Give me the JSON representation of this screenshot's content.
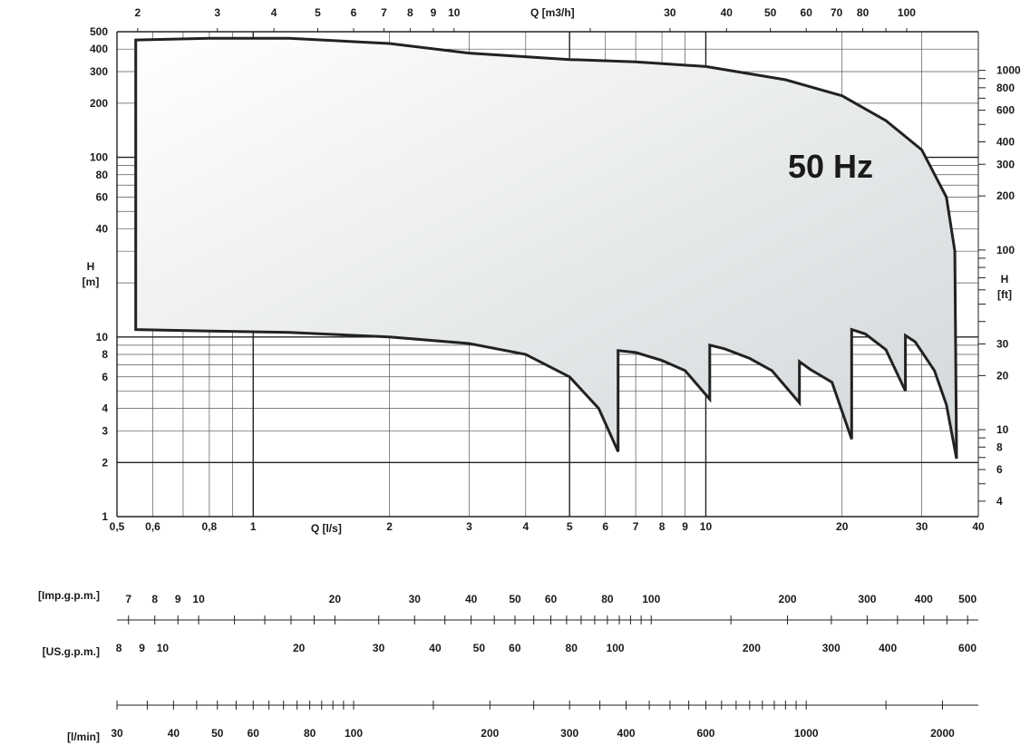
{
  "chart_data": {
    "type": "area",
    "title": "50 Hz",
    "x_axis": {
      "label": "Q  [l/s]",
      "scale": "log",
      "range": [
        0.5,
        40
      ],
      "ticks": [
        "0,5",
        "0,6",
        "0,8",
        "1",
        "2",
        "3",
        "4",
        "5",
        "6",
        "7",
        "8",
        "9",
        "10",
        "20",
        "30",
        "40"
      ]
    },
    "y_axis": {
      "label": "H\n[m]",
      "scale": "log",
      "range": [
        1,
        500
      ],
      "ticks": [
        "1",
        "2",
        "3",
        "4",
        "6",
        "8",
        "10",
        "40",
        "60",
        "80",
        "100",
        "200",
        "300",
        "400",
        "500"
      ]
    },
    "top_axis": {
      "label": "Q  [m3/h]",
      "ticks": [
        "2",
        "3",
        "4",
        "5",
        "6",
        "7",
        "8",
        "9",
        "10",
        "30",
        "40",
        "50",
        "60",
        "70",
        "80",
        "100"
      ]
    },
    "right_axis": {
      "label": "H\n[ft]",
      "ticks": [
        "4",
        "6",
        "8",
        "10",
        "20",
        "30",
        "100",
        "200",
        "300",
        "400",
        "600",
        "800",
        "1000"
      ]
    },
    "flow_scales": [
      {
        "label": "[Imp.g.p.m.]",
        "ticks": [
          "7",
          "8",
          "9",
          "10",
          "20",
          "30",
          "40",
          "50",
          "60",
          "80",
          "100",
          "200",
          "300",
          "400",
          "500"
        ]
      },
      {
        "label": "[US.g.p.m.]",
        "ticks": [
          "8",
          "9",
          "10",
          "20",
          "30",
          "40",
          "50",
          "60",
          "80",
          "100",
          "200",
          "300",
          "400",
          "600"
        ]
      },
      {
        "label": "[l/min]",
        "ticks": [
          "30",
          "40",
          "50",
          "60",
          "80",
          "100",
          "200",
          "300",
          "400",
          "600",
          "1000",
          "2000"
        ]
      }
    ],
    "series": [
      {
        "name": "50 Hz",
        "upper": [
          [
            0.55,
            450
          ],
          [
            0.8,
            460
          ],
          [
            1.2,
            460
          ],
          [
            2.0,
            430
          ],
          [
            3.0,
            380
          ],
          [
            5.0,
            350
          ],
          [
            7.0,
            340
          ],
          [
            10,
            320
          ],
          [
            15,
            270
          ],
          [
            20,
            220
          ],
          [
            25,
            160
          ],
          [
            30,
            110
          ],
          [
            34,
            60
          ],
          [
            35.5,
            30
          ]
        ],
        "lower": [
          [
            0.55,
            11
          ],
          [
            0.8,
            10.8
          ],
          [
            1.2,
            10.6
          ],
          [
            2.0,
            10.0
          ],
          [
            3.0,
            9.2
          ],
          [
            4.0,
            8.0
          ],
          [
            5.0,
            6.0
          ],
          [
            5.8,
            4.0
          ],
          [
            6.4,
            2.3
          ],
          [
            6.4,
            8.4
          ],
          [
            7.0,
            8.2
          ],
          [
            8.0,
            7.4
          ],
          [
            9.0,
            6.5
          ],
          [
            10.2,
            4.5
          ],
          [
            10.2,
            9.0
          ],
          [
            11.0,
            8.6
          ],
          [
            12.5,
            7.6
          ],
          [
            14.0,
            6.5
          ],
          [
            16.1,
            4.3
          ],
          [
            16.1,
            7.3
          ],
          [
            17.0,
            6.6
          ],
          [
            19.0,
            5.6
          ],
          [
            21.0,
            2.7
          ],
          [
            21.0,
            11.0
          ],
          [
            22.5,
            10.4
          ],
          [
            25.0,
            8.5
          ],
          [
            27.6,
            5.0
          ],
          [
            27.6,
            10.2
          ],
          [
            29.0,
            9.4
          ],
          [
            32.0,
            6.5
          ],
          [
            34.0,
            4.2
          ],
          [
            35.8,
            2.1
          ]
        ],
        "fill_colors": [
          "#ffffff",
          "#d2d7d9"
        ]
      }
    ]
  }
}
